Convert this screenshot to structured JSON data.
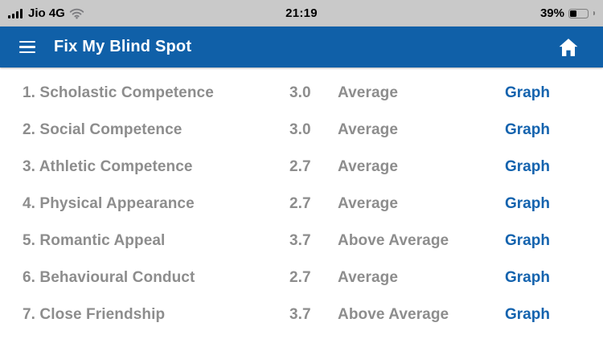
{
  "status_bar": {
    "carrier": "Jio 4G",
    "time": "21:19",
    "battery_percent": "39%",
    "battery_level_pct": 39,
    "icons": {
      "signal": "signal-bars-4",
      "wifi": "wifi-icon",
      "battery": "battery-icon"
    }
  },
  "header": {
    "title": "Fix My Blind Spot",
    "menu_icon": "hamburger-menu-icon",
    "home_icon": "home-icon",
    "background_color": "#1060a8"
  },
  "list": {
    "rows": [
      {
        "label": "1. Scholastic Competence",
        "score": "3.0",
        "rating": "Average",
        "link": "Graph"
      },
      {
        "label": "2. Social Competence",
        "score": "3.0",
        "rating": "Average",
        "link": "Graph"
      },
      {
        "label": "3. Athletic Competence",
        "score": "2.7",
        "rating": "Average",
        "link": "Graph"
      },
      {
        "label": "4. Physical Appearance",
        "score": "2.7",
        "rating": "Average",
        "link": "Graph"
      },
      {
        "label": "5. Romantic Appeal",
        "score": "3.7",
        "rating": "Above Average",
        "link": "Graph"
      },
      {
        "label": "6. Behavioural Conduct",
        "score": "2.7",
        "rating": "Average",
        "link": "Graph"
      },
      {
        "label": "7. Close Friendship",
        "score": "3.7",
        "rating": "Above Average",
        "link": "Graph"
      }
    ]
  },
  "colors": {
    "header_blue": "#1060a8",
    "link_blue": "#1463ae",
    "row_text_gray": "#8d8d8d",
    "status_bar_gray": "#c9c9c9"
  }
}
